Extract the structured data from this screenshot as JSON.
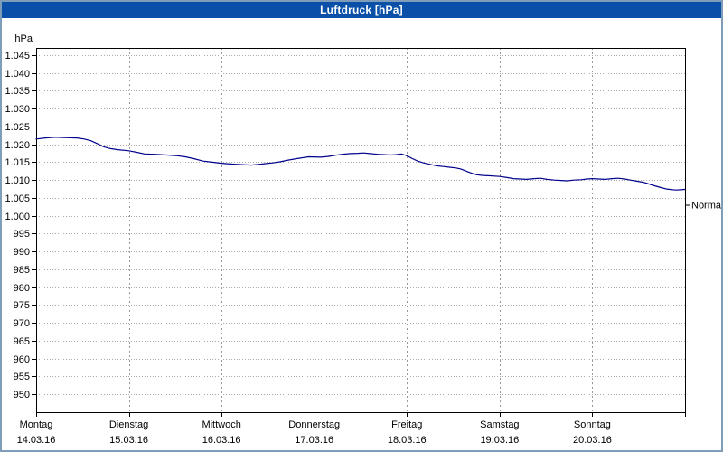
{
  "window": {
    "title": "Luftdruck [hPa]"
  },
  "colors": {
    "titlebar": "#0a50a8",
    "line": "#00008b",
    "grid_h": "#ababab",
    "grid_v": "#999999",
    "plot_border": "#000000",
    "background": "#ffffff"
  },
  "chart_data": {
    "type": "line",
    "title": "Luftdruck [hPa]",
    "y_unit_label": "hPa",
    "ylabel": "hPa",
    "xlabel": "",
    "ylim": [
      945,
      1047
    ],
    "grid": true,
    "legend_position": "none",
    "y_tick_values": [
      1045,
      1040,
      1035,
      1030,
      1025,
      1020,
      1015,
      1010,
      1005,
      1000,
      995,
      990,
      985,
      980,
      975,
      970,
      965,
      960,
      955,
      950
    ],
    "y_tick_labels": [
      "1.045",
      "1.040",
      "1.035",
      "1.030",
      "1.025",
      "1.020",
      "1.015",
      "1.010",
      "1.005",
      "1.000",
      "995",
      "990",
      "985",
      "980",
      "975",
      "970",
      "965",
      "960",
      "955",
      "950"
    ],
    "x_days": [
      {
        "name": "Montag",
        "date": "14.03.16"
      },
      {
        "name": "Dienstag",
        "date": "15.03.16"
      },
      {
        "name": "Mittwoch",
        "date": "16.03.16"
      },
      {
        "name": "Donnerstag",
        "date": "17.03.16"
      },
      {
        "name": "Freitag",
        "date": "18.03.16"
      },
      {
        "name": "Samstag",
        "date": "19.03.16"
      },
      {
        "name": "Sonntag",
        "date": "20.03.16"
      }
    ],
    "normal_marker": {
      "label": "Normal",
      "value": 1003
    },
    "series": [
      {
        "name": "Luftdruck",
        "color": "#00008b",
        "points": [
          [
            0.0,
            1021.5
          ],
          [
            0.1,
            1021.8
          ],
          [
            0.2,
            1022.0
          ],
          [
            0.3,
            1021.9
          ],
          [
            0.44,
            1021.8
          ],
          [
            0.52,
            1021.5
          ],
          [
            0.59,
            1021.0
          ],
          [
            0.66,
            1020.2
          ],
          [
            0.73,
            1019.3
          ],
          [
            0.8,
            1018.8
          ],
          [
            0.88,
            1018.5
          ],
          [
            1.0,
            1018.2
          ],
          [
            1.08,
            1017.8
          ],
          [
            1.17,
            1017.3
          ],
          [
            1.28,
            1017.2
          ],
          [
            1.41,
            1017.0
          ],
          [
            1.52,
            1016.8
          ],
          [
            1.61,
            1016.5
          ],
          [
            1.7,
            1016.0
          ],
          [
            1.8,
            1015.3
          ],
          [
            1.9,
            1015.0
          ],
          [
            2.0,
            1014.7
          ],
          [
            2.1,
            1014.5
          ],
          [
            2.17,
            1014.4
          ],
          [
            2.32,
            1014.2
          ],
          [
            2.4,
            1014.4
          ],
          [
            2.47,
            1014.6
          ],
          [
            2.55,
            1014.8
          ],
          [
            2.63,
            1015.1
          ],
          [
            2.72,
            1015.6
          ],
          [
            2.81,
            1016.0
          ],
          [
            2.94,
            1016.5
          ],
          [
            3.07,
            1016.4
          ],
          [
            3.15,
            1016.6
          ],
          [
            3.22,
            1016.9
          ],
          [
            3.3,
            1017.2
          ],
          [
            3.39,
            1017.4
          ],
          [
            3.47,
            1017.5
          ],
          [
            3.53,
            1017.6
          ],
          [
            3.6,
            1017.4
          ],
          [
            3.69,
            1017.2
          ],
          [
            3.76,
            1017.1
          ],
          [
            3.82,
            1017.0
          ],
          [
            3.88,
            1017.1
          ],
          [
            3.94,
            1017.3
          ],
          [
            4.0,
            1016.8
          ],
          [
            4.06,
            1016.0
          ],
          [
            4.11,
            1015.4
          ],
          [
            4.18,
            1014.8
          ],
          [
            4.25,
            1014.4
          ],
          [
            4.32,
            1014.0
          ],
          [
            4.39,
            1013.8
          ],
          [
            4.46,
            1013.6
          ],
          [
            4.53,
            1013.4
          ],
          [
            4.58,
            1013.1
          ],
          [
            4.63,
            1012.6
          ],
          [
            4.69,
            1012.0
          ],
          [
            4.75,
            1011.5
          ],
          [
            4.82,
            1011.3
          ],
          [
            4.88,
            1011.2
          ],
          [
            5.0,
            1011.0
          ],
          [
            5.08,
            1010.7
          ],
          [
            5.15,
            1010.4
          ],
          [
            5.22,
            1010.3
          ],
          [
            5.29,
            1010.2
          ],
          [
            5.37,
            1010.4
          ],
          [
            5.44,
            1010.5
          ],
          [
            5.51,
            1010.2
          ],
          [
            5.59,
            1010.0
          ],
          [
            5.66,
            1009.9
          ],
          [
            5.73,
            1009.8
          ],
          [
            5.8,
            1010.0
          ],
          [
            5.88,
            1010.1
          ],
          [
            5.94,
            1010.3
          ],
          [
            6.0,
            1010.4
          ],
          [
            6.07,
            1010.3
          ],
          [
            6.14,
            1010.2
          ],
          [
            6.21,
            1010.4
          ],
          [
            6.28,
            1010.5
          ],
          [
            6.35,
            1010.3
          ],
          [
            6.41,
            1010.0
          ],
          [
            6.48,
            1009.7
          ],
          [
            6.55,
            1009.4
          ],
          [
            6.61,
            1008.9
          ],
          [
            6.67,
            1008.4
          ],
          [
            6.74,
            1007.9
          ],
          [
            6.8,
            1007.5
          ],
          [
            6.9,
            1007.2
          ],
          [
            6.95,
            1007.3
          ],
          [
            7.0,
            1007.4
          ]
        ]
      }
    ]
  }
}
